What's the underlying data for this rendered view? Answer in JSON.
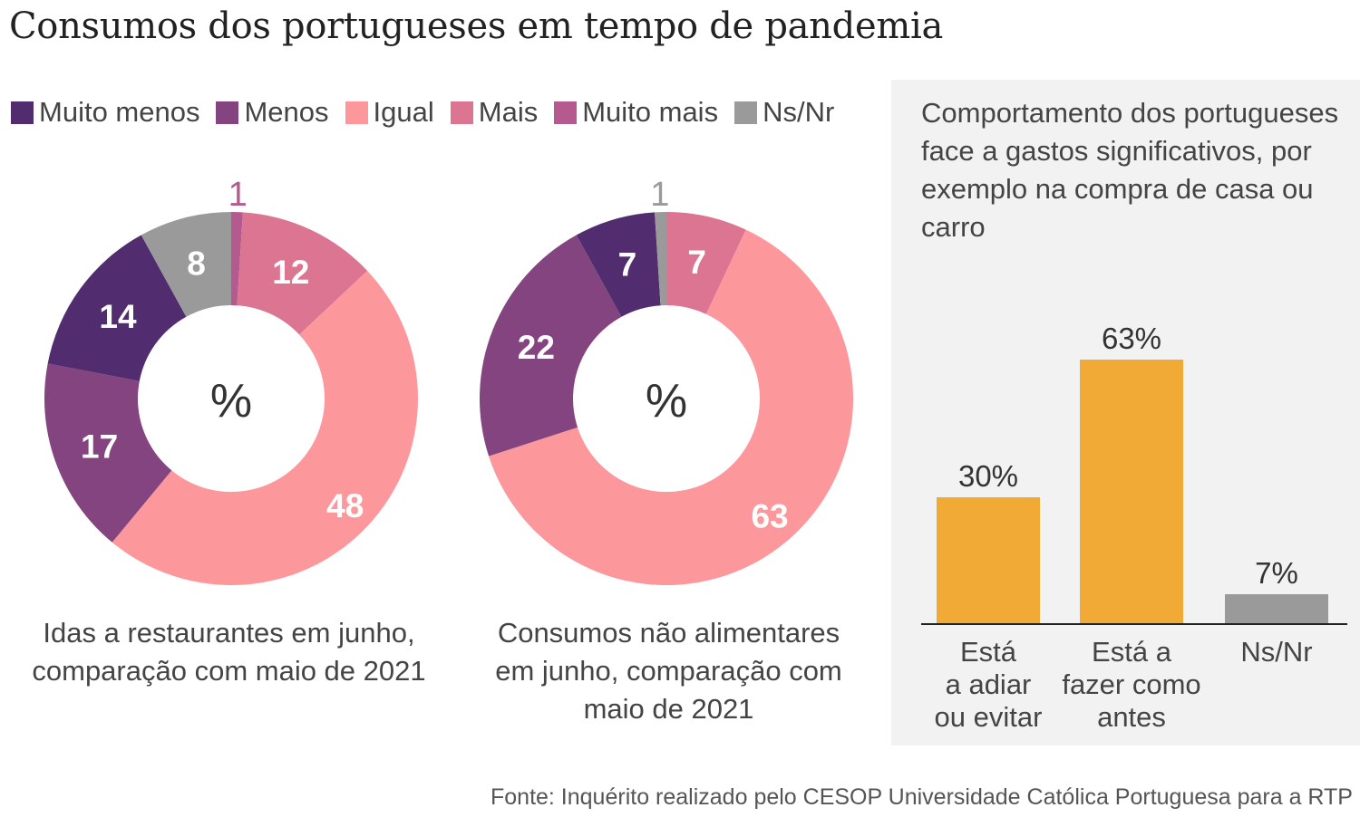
{
  "title": "Consumos dos portugueses em tempo de pandemia",
  "legend": [
    {
      "label": "Muito menos",
      "color": "#512c6e"
    },
    {
      "label": "Menos",
      "color": "#83447f"
    },
    {
      "label": "Igual",
      "color": "#fc989c"
    },
    {
      "label": "Mais",
      "color": "#db7592"
    },
    {
      "label": "Muito mais",
      "color": "#b55a8f"
    },
    {
      "label": "Ns/Nr",
      "color": "#9a9a9a"
    }
  ],
  "chart_data": [
    {
      "type": "pie",
      "variant": "donut",
      "title": "Idas a restaurantes em junho, comparação com maio de 2021",
      "center_label": "%",
      "slices": [
        {
          "label": "Muito mais",
          "value": 1,
          "color": "#b55a8f"
        },
        {
          "label": "Mais",
          "value": 12,
          "color": "#db7592"
        },
        {
          "label": "Igual",
          "value": 48,
          "color": "#fc989c"
        },
        {
          "label": "Menos",
          "value": 17,
          "color": "#83447f"
        },
        {
          "label": "Muito menos",
          "value": 14,
          "color": "#512c6e"
        },
        {
          "label": "Ns/Nr",
          "value": 8,
          "color": "#9a9a9a"
        }
      ]
    },
    {
      "type": "pie",
      "variant": "donut",
      "title": "Consumos não alimentares em junho, comparação com maio de 2021",
      "center_label": "%",
      "slices": [
        {
          "label": "Mais",
          "value": 7,
          "color": "#db7592"
        },
        {
          "label": "Igual",
          "value": 63,
          "color": "#fc989c"
        },
        {
          "label": "Menos",
          "value": 22,
          "color": "#83447f"
        },
        {
          "label": "Muito menos",
          "value": 7,
          "color": "#512c6e"
        },
        {
          "label": "Ns/Nr",
          "value": 1,
          "color": "#9a9a9a"
        }
      ]
    },
    {
      "type": "bar",
      "title": "Comportamento dos portugueses face a gastos significativos, por exemplo na compra de casa ou carro",
      "categories": [
        "Está a adiar ou evitar",
        "Está a fazer como antes",
        "Ns/Nr"
      ],
      "category_lines": [
        [
          "Está",
          "a adiar",
          "ou evitar"
        ],
        [
          "Está a",
          "fazer como",
          "antes"
        ],
        [
          "Ns/Nr"
        ]
      ],
      "values": [
        30,
        63,
        7
      ],
      "value_labels": [
        "30%",
        "63%",
        "7%"
      ],
      "colors": [
        "#f2aa36",
        "#f2aa36",
        "#9a9a9a"
      ],
      "xlabel": "",
      "ylabel": "",
      "ylim": [
        0,
        63
      ],
      "grid": false
    }
  ],
  "donut_captions": [
    [
      "Idas a restaurantes em junho,",
      "comparação com maio de 2021"
    ],
    [
      "Consumos não alimentares",
      "em junho, comparação com",
      "maio de 2021"
    ]
  ],
  "footer": "Fonte: Inquérito realizado pelo CESOP Universidade Católica Portuguesa para a RTP"
}
